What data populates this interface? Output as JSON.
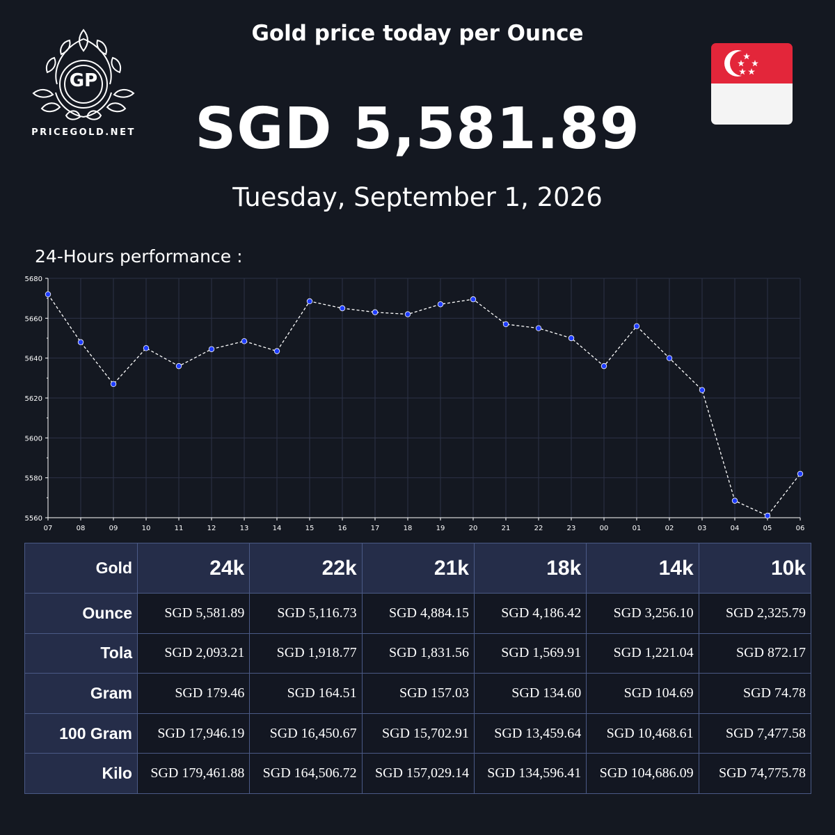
{
  "logo": {
    "monogram": "GP",
    "site": "PRICEGOLD.NET"
  },
  "header": {
    "title": "Gold price today per Ounce",
    "price": "SGD 5,581.89",
    "date": "Tuesday, September 1, 2026"
  },
  "flag": {
    "country": "Singapore",
    "colors": {
      "top": "#e3263a",
      "bottom": "#f4f4f4"
    }
  },
  "performance_label": "24-Hours performance :",
  "chart_data": {
    "type": "line",
    "title": "",
    "xlabel": "",
    "ylabel": "",
    "x": [
      "07",
      "08",
      "09",
      "10",
      "11",
      "12",
      "13",
      "14",
      "15",
      "16",
      "17",
      "18",
      "19",
      "20",
      "21",
      "22",
      "23",
      "00",
      "01",
      "02",
      "03",
      "04",
      "05",
      "06"
    ],
    "series": [
      {
        "values": [
          5672,
          5648,
          5627,
          5645,
          5636,
          5644.5,
          5648.5,
          5643.5,
          5668.5,
          5665,
          5663,
          5662,
          5667,
          5669.5,
          5657,
          5655,
          5650,
          5636,
          5656,
          5640,
          5624,
          5568.5,
          5561,
          5582
        ]
      }
    ],
    "ylim": [
      5560,
      5680
    ],
    "yticks": [
      5560,
      5580,
      5600,
      5620,
      5640,
      5660,
      5680
    ],
    "grid": true,
    "colors": {
      "line": "#ffffff",
      "marker": "#1f3dff",
      "grid": "#2c3247"
    }
  },
  "table": {
    "corner": "Gold",
    "columns": [
      "24k",
      "22k",
      "21k",
      "18k",
      "14k",
      "10k"
    ],
    "rows": [
      {
        "label": "Ounce",
        "values": [
          "SGD 5,581.89",
          "SGD 5,116.73",
          "SGD 4,884.15",
          "SGD 4,186.42",
          "SGD 3,256.10",
          "SGD 2,325.79"
        ]
      },
      {
        "label": "Tola",
        "values": [
          "SGD 2,093.21",
          "SGD 1,918.77",
          "SGD 1,831.56",
          "SGD 1,569.91",
          "SGD 1,221.04",
          "SGD 872.17"
        ]
      },
      {
        "label": "Gram",
        "values": [
          "SGD 179.46",
          "SGD 164.51",
          "SGD 157.03",
          "SGD 134.60",
          "SGD 104.69",
          "SGD 74.78"
        ]
      },
      {
        "label": "100 Gram",
        "values": [
          "SGD 17,946.19",
          "SGD 16,450.67",
          "SGD 15,702.91",
          "SGD 13,459.64",
          "SGD 10,468.61",
          "SGD 7,477.58"
        ]
      },
      {
        "label": "Kilo",
        "values": [
          "SGD 179,461.88",
          "SGD 164,506.72",
          "SGD 157,029.14",
          "SGD 134,596.41",
          "SGD 104,686.09",
          "SGD 74,775.78"
        ]
      }
    ]
  }
}
